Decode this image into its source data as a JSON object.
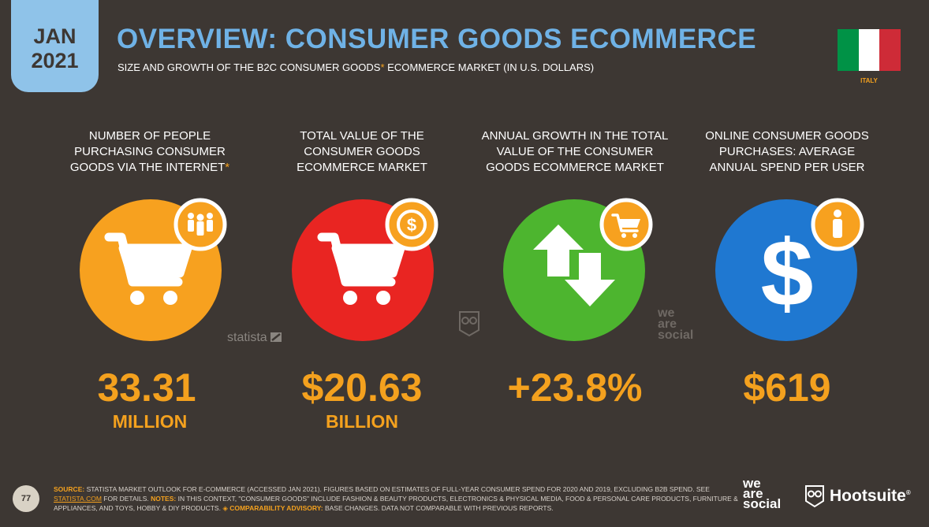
{
  "header": {
    "date_month": "JAN",
    "date_year": "2021",
    "title": "OVERVIEW: CONSUMER GOODS ECOMMERCE",
    "subtitle_pre": "SIZE AND GROWTH OF THE B2C CONSUMER GOODS",
    "subtitle_star": "*",
    "subtitle_post": " ECOMMERCE MARKET (IN U.S. DOLLARS)",
    "country": "ITALY",
    "flag_colors": [
      "#009246",
      "#ffffff",
      "#ce2b37"
    ]
  },
  "kpis": [
    {
      "label_lines": [
        "NUMBER OF PEOPLE",
        "PURCHASING CONSUMER",
        "GOODS VIA THE INTERNET"
      ],
      "label_star": "*",
      "value": "33.31",
      "unit": "MILLION",
      "circle_color": "#f7a11f",
      "main_icon": "shopping-cart-icon",
      "badge_icon": "people-icon"
    },
    {
      "label_lines": [
        "TOTAL VALUE OF THE",
        "CONSUMER GOODS",
        "ECOMMERCE MARKET"
      ],
      "label_star": "",
      "value": "$20.63",
      "unit": "BILLION",
      "circle_color": "#e92522",
      "main_icon": "shopping-cart-icon",
      "badge_icon": "dollar-coin-icon"
    },
    {
      "label_lines": [
        "ANNUAL GROWTH IN THE TOTAL",
        "VALUE OF THE CONSUMER",
        "GOODS ECOMMERCE MARKET"
      ],
      "label_star": "",
      "value": "+23.8%",
      "unit": "",
      "circle_color": "#4db52f",
      "main_icon": "up-down-arrows-icon",
      "badge_icon": "shopping-cart-icon"
    },
    {
      "label_lines": [
        "ONLINE CONSUMER GOODS",
        "PURCHASES: AVERAGE",
        "ANNUAL SPEND PER USER"
      ],
      "label_star": "",
      "value": "$619",
      "unit": "",
      "circle_color": "#1f78d1",
      "main_icon": "dollar-sign-icon",
      "badge_icon": "person-icon"
    }
  ],
  "watermarks": {
    "statista": "statista",
    "wearesocial": [
      "we",
      "are",
      "social"
    ]
  },
  "footer": {
    "page_number": "77",
    "source_label": "SOURCE:",
    "source_text": " STATISTA MARKET OUTLOOK FOR E-COMMERCE (ACCESSED JAN 2021). FIGURES BASED ON ESTIMATES OF FULL-YEAR CONSUMER SPEND FOR 2020 AND 2019, EXCLUDING B2B SPEND. SEE ",
    "source_link": "STATISTA.COM",
    "source_text2": " FOR DETAILS. ",
    "notes_label": "NOTES:",
    "notes_text": " IN THIS CONTEXT, \"CONSUMER GOODS\" INCLUDE FASHION & BEAUTY PRODUCTS, ELECTRONICS & PHYSICAL MEDIA, FOOD & PERSONAL CARE PRODUCTS, FURNITURE & APPLIANCES, AND TOYS, HOBBY & DIY PRODUCTS. ",
    "advisory_label": "◈ COMPARABILITY ADVISORY:",
    "advisory_text": " BASE CHANGES. DATA NOT COMPARABLE WITH PREVIOUS REPORTS.",
    "logo_wearesocial": [
      "we",
      "are",
      "social"
    ],
    "logo_hootsuite": "Hootsuite",
    "logo_hootsuite_reg": "®"
  },
  "colors": {
    "background": "#3d3733",
    "accent_orange": "#f4a11e",
    "title_blue": "#6fb2e6",
    "badge_blue": "#8fc3e9"
  }
}
